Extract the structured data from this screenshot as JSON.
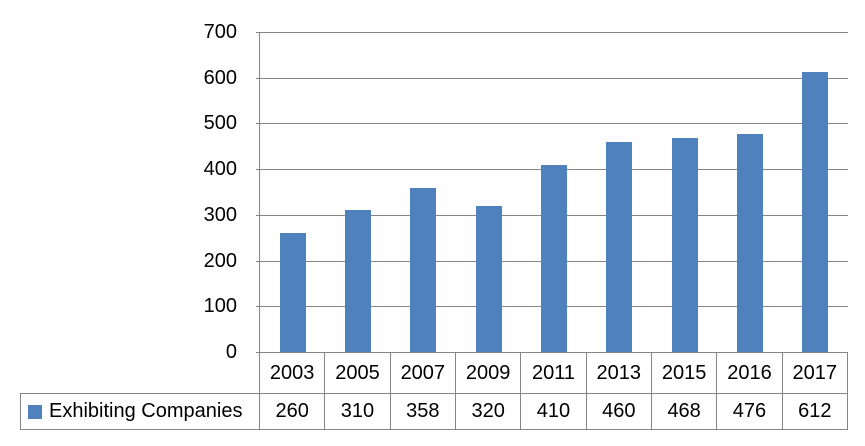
{
  "chart_data": {
    "type": "bar",
    "title": "",
    "xlabel": "",
    "ylabel": "",
    "categories": [
      "2003",
      "2005",
      "2007",
      "2009",
      "2011",
      "2013",
      "2015",
      "2016",
      "2017"
    ],
    "series": [
      {
        "name": "Exhibiting Companies",
        "values": [
          260,
          310,
          358,
          320,
          410,
          460,
          468,
          476,
          612
        ],
        "color": "#4F81BD"
      }
    ],
    "ylim": [
      0,
      700
    ],
    "yticks": [
      0,
      100,
      200,
      300,
      400,
      500,
      600,
      700
    ],
    "grid": true,
    "legend_position": "data-table-left",
    "data_table_shown": true
  },
  "colors": {
    "bar": "#4F81BD",
    "gridline": "#848484",
    "table_border": "#848484",
    "text": "#000000",
    "background": "#FFFFFF"
  }
}
